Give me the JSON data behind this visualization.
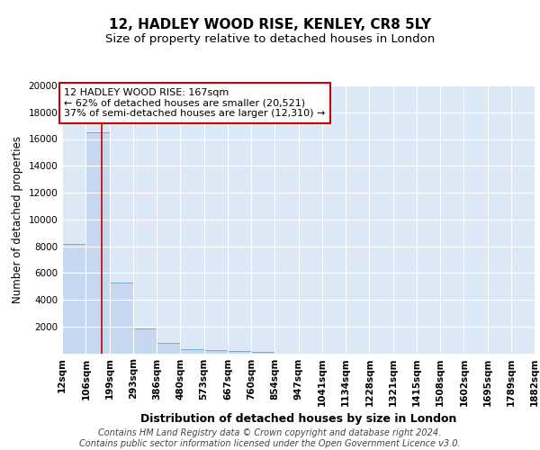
{
  "title1": "12, HADLEY WOOD RISE, KENLEY, CR8 5LY",
  "title2": "Size of property relative to detached houses in London",
  "xlabel": "Distribution of detached houses by size in London",
  "ylabel": "Number of detached properties",
  "bin_edges": [
    12,
    106,
    199,
    293,
    386,
    480,
    573,
    667,
    760,
    854,
    947,
    1041,
    1134,
    1228,
    1321,
    1415,
    1508,
    1602,
    1695,
    1789,
    1882
  ],
  "bar_heights": [
    8200,
    16500,
    5300,
    1850,
    750,
    310,
    220,
    170,
    130,
    0,
    0,
    0,
    0,
    0,
    0,
    0,
    0,
    0,
    0,
    0
  ],
  "bar_color": "#c5d8f0",
  "bar_edge_color": "#7aabda",
  "background_color": "#dce8f5",
  "grid_color": "#ffffff",
  "property_sqm": 167,
  "red_line_color": "#cc0000",
  "annotation_text": "12 HADLEY WOOD RISE: 167sqm\n← 62% of detached houses are smaller (20,521)\n37% of semi-detached houses are larger (12,310) →",
  "annotation_box_color": "#cc0000",
  "ylim": [
    0,
    20000
  ],
  "yticks": [
    2000,
    4000,
    6000,
    8000,
    10000,
    12000,
    14000,
    16000,
    18000,
    20000
  ],
  "footer_text": "Contains HM Land Registry data © Crown copyright and database right 2024.\nContains public sector information licensed under the Open Government Licence v3.0.",
  "title1_fontsize": 11,
  "title2_fontsize": 9.5,
  "xlabel_fontsize": 9,
  "ylabel_fontsize": 8.5,
  "tick_fontsize": 7.5,
  "annotation_fontsize": 8,
  "footer_fontsize": 7
}
